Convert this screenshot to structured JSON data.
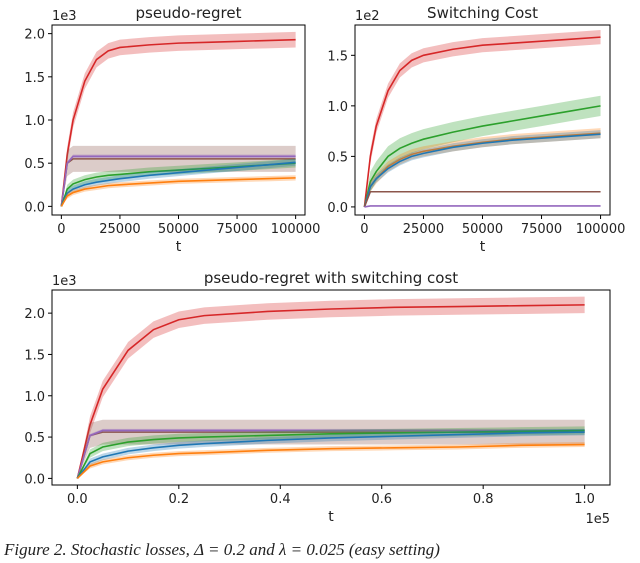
{
  "caption": "Figure 2. Stochastic losses, Δ = 0.2 and λ = 0.025 (easy setting)",
  "colors": {
    "red": "#d62728",
    "purple": "#9467bd",
    "brown": "#8c564b",
    "green": "#2ca02c",
    "blue": "#1f77b4",
    "orange": "#ff7f0e"
  },
  "chart_data": [
    {
      "type": "line",
      "title": "pseudo-regret",
      "xlabel": "t",
      "ylabel": "",
      "y_scale_label": "1e3",
      "x_scale_label": "",
      "xlim": [
        -4000,
        104000
      ],
      "ylim": [
        -0.1,
        2.1
      ],
      "xticks": [
        0,
        25000,
        50000,
        75000,
        100000
      ],
      "xtick_labels": [
        "0",
        "25000",
        "50000",
        "75000",
        "100000"
      ],
      "yticks": [
        0,
        0.5,
        1,
        1.5,
        2
      ],
      "ytick_labels": [
        "0.0",
        "0.5",
        "1.0",
        "1.5",
        "2.0"
      ],
      "x": [
        0,
        2500,
        5000,
        10000,
        15000,
        20000,
        25000,
        37500,
        50000,
        62500,
        75000,
        87500,
        100000
      ],
      "series": [
        {
          "name": "red",
          "band": 0.09,
          "values": [
            0,
            0.6,
            1.0,
            1.45,
            1.7,
            1.8,
            1.84,
            1.87,
            1.89,
            1.9,
            1.91,
            1.92,
            1.93
          ]
        },
        {
          "name": "brown",
          "band": 0.15,
          "values": [
            0,
            0.5,
            0.55,
            0.55,
            0.55,
            0.55,
            0.55,
            0.55,
            0.55,
            0.55,
            0.55,
            0.55,
            0.55
          ]
        },
        {
          "name": "purple",
          "band": 0.02,
          "values": [
            0,
            0.5,
            0.58,
            0.58,
            0.58,
            0.58,
            0.58,
            0.58,
            0.58,
            0.58,
            0.58,
            0.58,
            0.58
          ]
        },
        {
          "name": "green",
          "band": 0.05,
          "values": [
            0,
            0.2,
            0.26,
            0.31,
            0.34,
            0.36,
            0.37,
            0.4,
            0.42,
            0.44,
            0.46,
            0.48,
            0.5
          ]
        },
        {
          "name": "blue",
          "band": 0.04,
          "values": [
            0,
            0.15,
            0.2,
            0.25,
            0.28,
            0.3,
            0.32,
            0.36,
            0.39,
            0.42,
            0.45,
            0.48,
            0.51
          ]
        },
        {
          "name": "orange",
          "band": 0.03,
          "values": [
            0,
            0.12,
            0.16,
            0.2,
            0.22,
            0.24,
            0.25,
            0.27,
            0.29,
            0.3,
            0.31,
            0.32,
            0.33
          ]
        }
      ]
    },
    {
      "type": "line",
      "title": "Switching Cost",
      "xlabel": "t",
      "ylabel": "",
      "y_scale_label": "1e2",
      "x_scale_label": "",
      "xlim": [
        -4000,
        104000
      ],
      "ylim": [
        -0.08,
        1.8
      ],
      "xticks": [
        0,
        25000,
        50000,
        75000,
        100000
      ],
      "xtick_labels": [
        "0",
        "25000",
        "50000",
        "75000",
        "100000"
      ],
      "yticks": [
        0,
        0.5,
        1,
        1.5
      ],
      "ytick_labels": [
        "0.0",
        "0.5",
        "1.0",
        "1.5"
      ],
      "x": [
        0,
        2500,
        5000,
        10000,
        15000,
        20000,
        25000,
        37500,
        50000,
        62500,
        75000,
        87500,
        100000
      ],
      "series": [
        {
          "name": "red",
          "band": 0.07,
          "values": [
            0,
            0.5,
            0.8,
            1.15,
            1.35,
            1.45,
            1.5,
            1.56,
            1.6,
            1.62,
            1.64,
            1.66,
            1.68
          ]
        },
        {
          "name": "green",
          "band": 0.1,
          "values": [
            0,
            0.25,
            0.35,
            0.5,
            0.58,
            0.63,
            0.67,
            0.74,
            0.8,
            0.85,
            0.9,
            0.95,
            1.0
          ]
        },
        {
          "name": "orange",
          "band": 0.05,
          "values": [
            0,
            0.2,
            0.28,
            0.4,
            0.47,
            0.52,
            0.55,
            0.6,
            0.64,
            0.67,
            0.69,
            0.71,
            0.73
          ]
        },
        {
          "name": "blue",
          "band": 0.04,
          "values": [
            0,
            0.2,
            0.28,
            0.38,
            0.45,
            0.5,
            0.53,
            0.59,
            0.63,
            0.66,
            0.68,
            0.7,
            0.72
          ]
        },
        {
          "name": "brown",
          "band": 0.005,
          "values": [
            0,
            0.15,
            0.15,
            0.15,
            0.15,
            0.15,
            0.15,
            0.15,
            0.15,
            0.15,
            0.15,
            0.15,
            0.15
          ]
        },
        {
          "name": "purple",
          "band": 0.003,
          "values": [
            0,
            0.01,
            0.01,
            0.01,
            0.01,
            0.01,
            0.01,
            0.01,
            0.01,
            0.01,
            0.01,
            0.01,
            0.01
          ]
        }
      ]
    },
    {
      "type": "line",
      "title": "pseudo-regret with switching cost",
      "xlabel": "t",
      "ylabel": "",
      "y_scale_label": "1e3",
      "x_scale_label": "1e5",
      "xlim": [
        -0.05,
        1.05
      ],
      "ylim": [
        -0.08,
        2.28
      ],
      "xticks": [
        0,
        0.2,
        0.4,
        0.6,
        0.8,
        1.0
      ],
      "xtick_labels": [
        "0.0",
        "0.2",
        "0.4",
        "0.6",
        "0.8",
        "1.0"
      ],
      "yticks": [
        0,
        0.5,
        1,
        1.5,
        2
      ],
      "ytick_labels": [
        "0.0",
        "0.5",
        "1.0",
        "1.5",
        "2.0"
      ],
      "x": [
        0,
        0.025,
        0.05,
        0.1,
        0.15,
        0.2,
        0.25,
        0.375,
        0.5,
        0.625,
        0.75,
        0.875,
        1.0
      ],
      "series": [
        {
          "name": "red",
          "band": 0.1,
          "values": [
            0,
            0.65,
            1.08,
            1.55,
            1.8,
            1.92,
            1.97,
            2.02,
            2.05,
            2.07,
            2.08,
            2.09,
            2.1
          ]
        },
        {
          "name": "brown",
          "band": 0.15,
          "values": [
            0,
            0.52,
            0.56,
            0.56,
            0.56,
            0.56,
            0.56,
            0.56,
            0.56,
            0.56,
            0.56,
            0.56,
            0.56
          ]
        },
        {
          "name": "purple",
          "band": 0.02,
          "values": [
            0,
            0.52,
            0.58,
            0.58,
            0.58,
            0.58,
            0.58,
            0.58,
            0.58,
            0.58,
            0.58,
            0.58,
            0.58
          ]
        },
        {
          "name": "green",
          "band": 0.05,
          "values": [
            0,
            0.3,
            0.38,
            0.44,
            0.47,
            0.49,
            0.5,
            0.52,
            0.54,
            0.55,
            0.56,
            0.57,
            0.58
          ]
        },
        {
          "name": "blue",
          "band": 0.04,
          "values": [
            0,
            0.2,
            0.26,
            0.33,
            0.37,
            0.4,
            0.42,
            0.46,
            0.49,
            0.51,
            0.53,
            0.55,
            0.56
          ]
        },
        {
          "name": "orange",
          "band": 0.03,
          "values": [
            0,
            0.15,
            0.2,
            0.25,
            0.28,
            0.3,
            0.31,
            0.34,
            0.36,
            0.37,
            0.38,
            0.4,
            0.41
          ]
        }
      ]
    }
  ]
}
